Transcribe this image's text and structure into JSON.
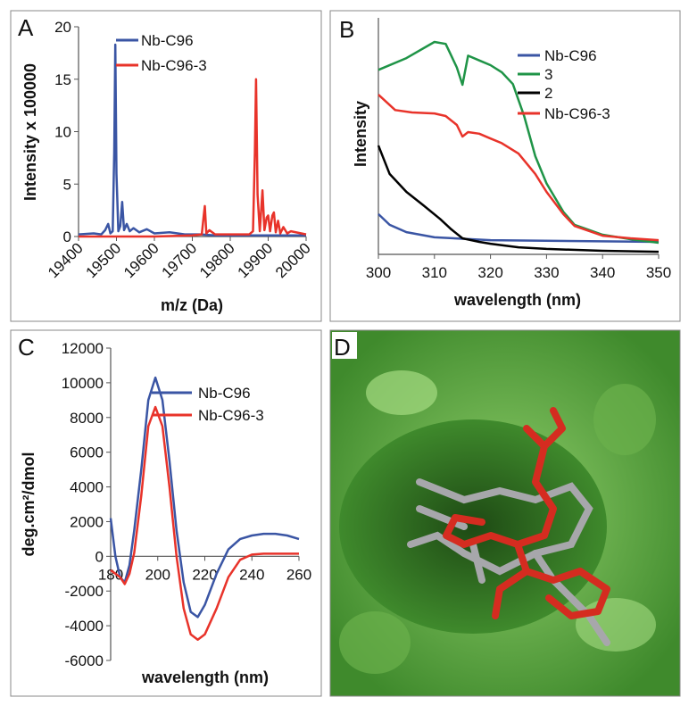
{
  "chart_data": [
    {
      "type": "line",
      "label": "A",
      "x_label": "m/z  (Da)",
      "y_label": "Intensity x 100000",
      "xlim": [
        19400,
        20000
      ],
      "xticks": [
        19400,
        19500,
        19600,
        19700,
        19800,
        19900,
        20000
      ],
      "ylim": [
        0,
        20
      ],
      "yticks": [
        0,
        5,
        10,
        15,
        20
      ],
      "series": [
        {
          "name": "Nb-C96",
          "color": "#3a55a4",
          "x": [
            19400,
            19440,
            19460,
            19470,
            19478,
            19484,
            19490,
            19494,
            19497,
            19500,
            19505,
            19510,
            19515,
            19520,
            19527,
            19535,
            19545,
            19560,
            19580,
            19600,
            19640,
            19680,
            19720,
            19760,
            19800,
            19850,
            19900,
            19950,
            20000
          ],
          "values": [
            0.2,
            0.3,
            0.2,
            0.6,
            1.2,
            0.3,
            0.5,
            8,
            18.3,
            6,
            0.5,
            1,
            3.3,
            0.6,
            1.2,
            0.5,
            0.8,
            0.4,
            0.7,
            0.3,
            0.4,
            0.2,
            0.2,
            0.1,
            0.1,
            0.1,
            0.1,
            0.1,
            0.1
          ]
        },
        {
          "name": "Nb-C96-3",
          "color": "#e8332a",
          "x": [
            19400,
            19600,
            19700,
            19725,
            19730,
            19733,
            19737,
            19745,
            19760,
            19800,
            19850,
            19860,
            19865,
            19868,
            19872,
            19878,
            19885,
            19890,
            19896,
            19900,
            19905,
            19911,
            19915,
            19920,
            19926,
            19932,
            19940,
            19950,
            19960,
            20000
          ],
          "values": [
            0,
            0,
            0.1,
            0.2,
            2,
            2.9,
            0.3,
            0.6,
            0.2,
            0.2,
            0.2,
            0.5,
            8,
            15,
            4,
            0.5,
            4.4,
            0.6,
            1.8,
            2,
            0.5,
            2,
            2.3,
            0.4,
            1.5,
            0.3,
            0.9,
            0.3,
            0.5,
            0.2
          ]
        }
      ]
    },
    {
      "type": "line",
      "label": "B",
      "x_label": "wavelength (nm)",
      "y_label": "Intensity",
      "xlim": [
        300,
        350
      ],
      "xticks": [
        300,
        310,
        320,
        330,
        340,
        350
      ],
      "ylim": [
        0,
        100
      ],
      "series": [
        {
          "name": "Nb-C96",
          "color": "#3a55a4",
          "x": [
            300,
            302,
            305,
            310,
            320,
            350
          ],
          "values": [
            17,
            12.5,
            9.4,
            7.2,
            6,
            5.3
          ]
        },
        {
          "name": "3",
          "color": "#1f9447",
          "x": [
            300,
            305,
            310,
            312,
            314,
            315,
            316,
            318,
            320,
            322,
            324,
            326,
            328,
            330,
            333,
            335,
            340,
            345,
            350
          ],
          "values": [
            78,
            83,
            89.8,
            89,
            79,
            71.7,
            84,
            82,
            80,
            77,
            72,
            58.5,
            41.5,
            30,
            18,
            12.5,
            8.3,
            6.4,
            4.9
          ]
        },
        {
          "name": "2",
          "color": "#000000",
          "x": [
            300,
            302,
            305,
            308,
            311,
            313,
            315,
            318,
            320,
            325,
            330,
            340,
            350
          ],
          "values": [
            46,
            34,
            26.4,
            20.8,
            15,
            10.6,
            6.8,
            5.3,
            4.5,
            3,
            2.3,
            1.5,
            1.1
          ]
        },
        {
          "name": "Nb-C96-3",
          "color": "#e8332a",
          "x": [
            300,
            303,
            306,
            310,
            312,
            314,
            315,
            316,
            318,
            320,
            322,
            325,
            328,
            330,
            333,
            335,
            340,
            345,
            350
          ],
          "values": [
            67.5,
            61,
            60,
            59.6,
            58.5,
            54.7,
            49.8,
            51.7,
            51,
            49,
            47,
            42.6,
            34,
            26.4,
            17,
            12,
            7.9,
            6.8,
            6
          ]
        }
      ]
    },
    {
      "type": "line",
      "label": "C",
      "x_label": "wavelength (nm)",
      "y_label": "deg.cm²/dmol",
      "xlim": [
        180,
        260
      ],
      "xticks": [
        180,
        200,
        220,
        240,
        260
      ],
      "ylim": [
        -6000,
        12000
      ],
      "yticks": [
        -6000,
        -4000,
        -2000,
        0,
        2000,
        4000,
        6000,
        8000,
        10000,
        12000
      ],
      "series": [
        {
          "name": "Nb-C96",
          "color": "#3a55a4",
          "x": [
            180,
            182,
            184,
            186,
            188,
            190,
            193,
            196,
            199,
            202,
            205,
            208,
            211,
            214,
            217,
            220,
            225,
            230,
            235,
            240,
            245,
            250,
            255,
            260
          ],
          "values": [
            2200,
            0,
            -1200,
            -1500,
            -500,
            1500,
            5000,
            9000,
            10300,
            9000,
            5500,
            1500,
            -1500,
            -3200,
            -3500,
            -2800,
            -1000,
            400,
            1000,
            1200,
            1300,
            1300,
            1200,
            1000
          ]
        },
        {
          "name": "Nb-C96-3",
          "color": "#e8332a",
          "x": [
            180,
            182,
            184,
            186,
            188,
            190,
            193,
            196,
            199,
            202,
            205,
            208,
            211,
            214,
            217,
            220,
            225,
            230,
            235,
            240,
            245,
            250,
            260
          ],
          "values": [
            -800,
            -1000,
            -1200,
            -1600,
            -1000,
            200,
            3500,
            7500,
            8600,
            7500,
            4000,
            0,
            -3000,
            -4500,
            -4800,
            -4500,
            -3000,
            -1200,
            -200,
            100,
            150,
            150,
            150
          ]
        }
      ]
    },
    {
      "type": "image",
      "label": "D"
    }
  ]
}
